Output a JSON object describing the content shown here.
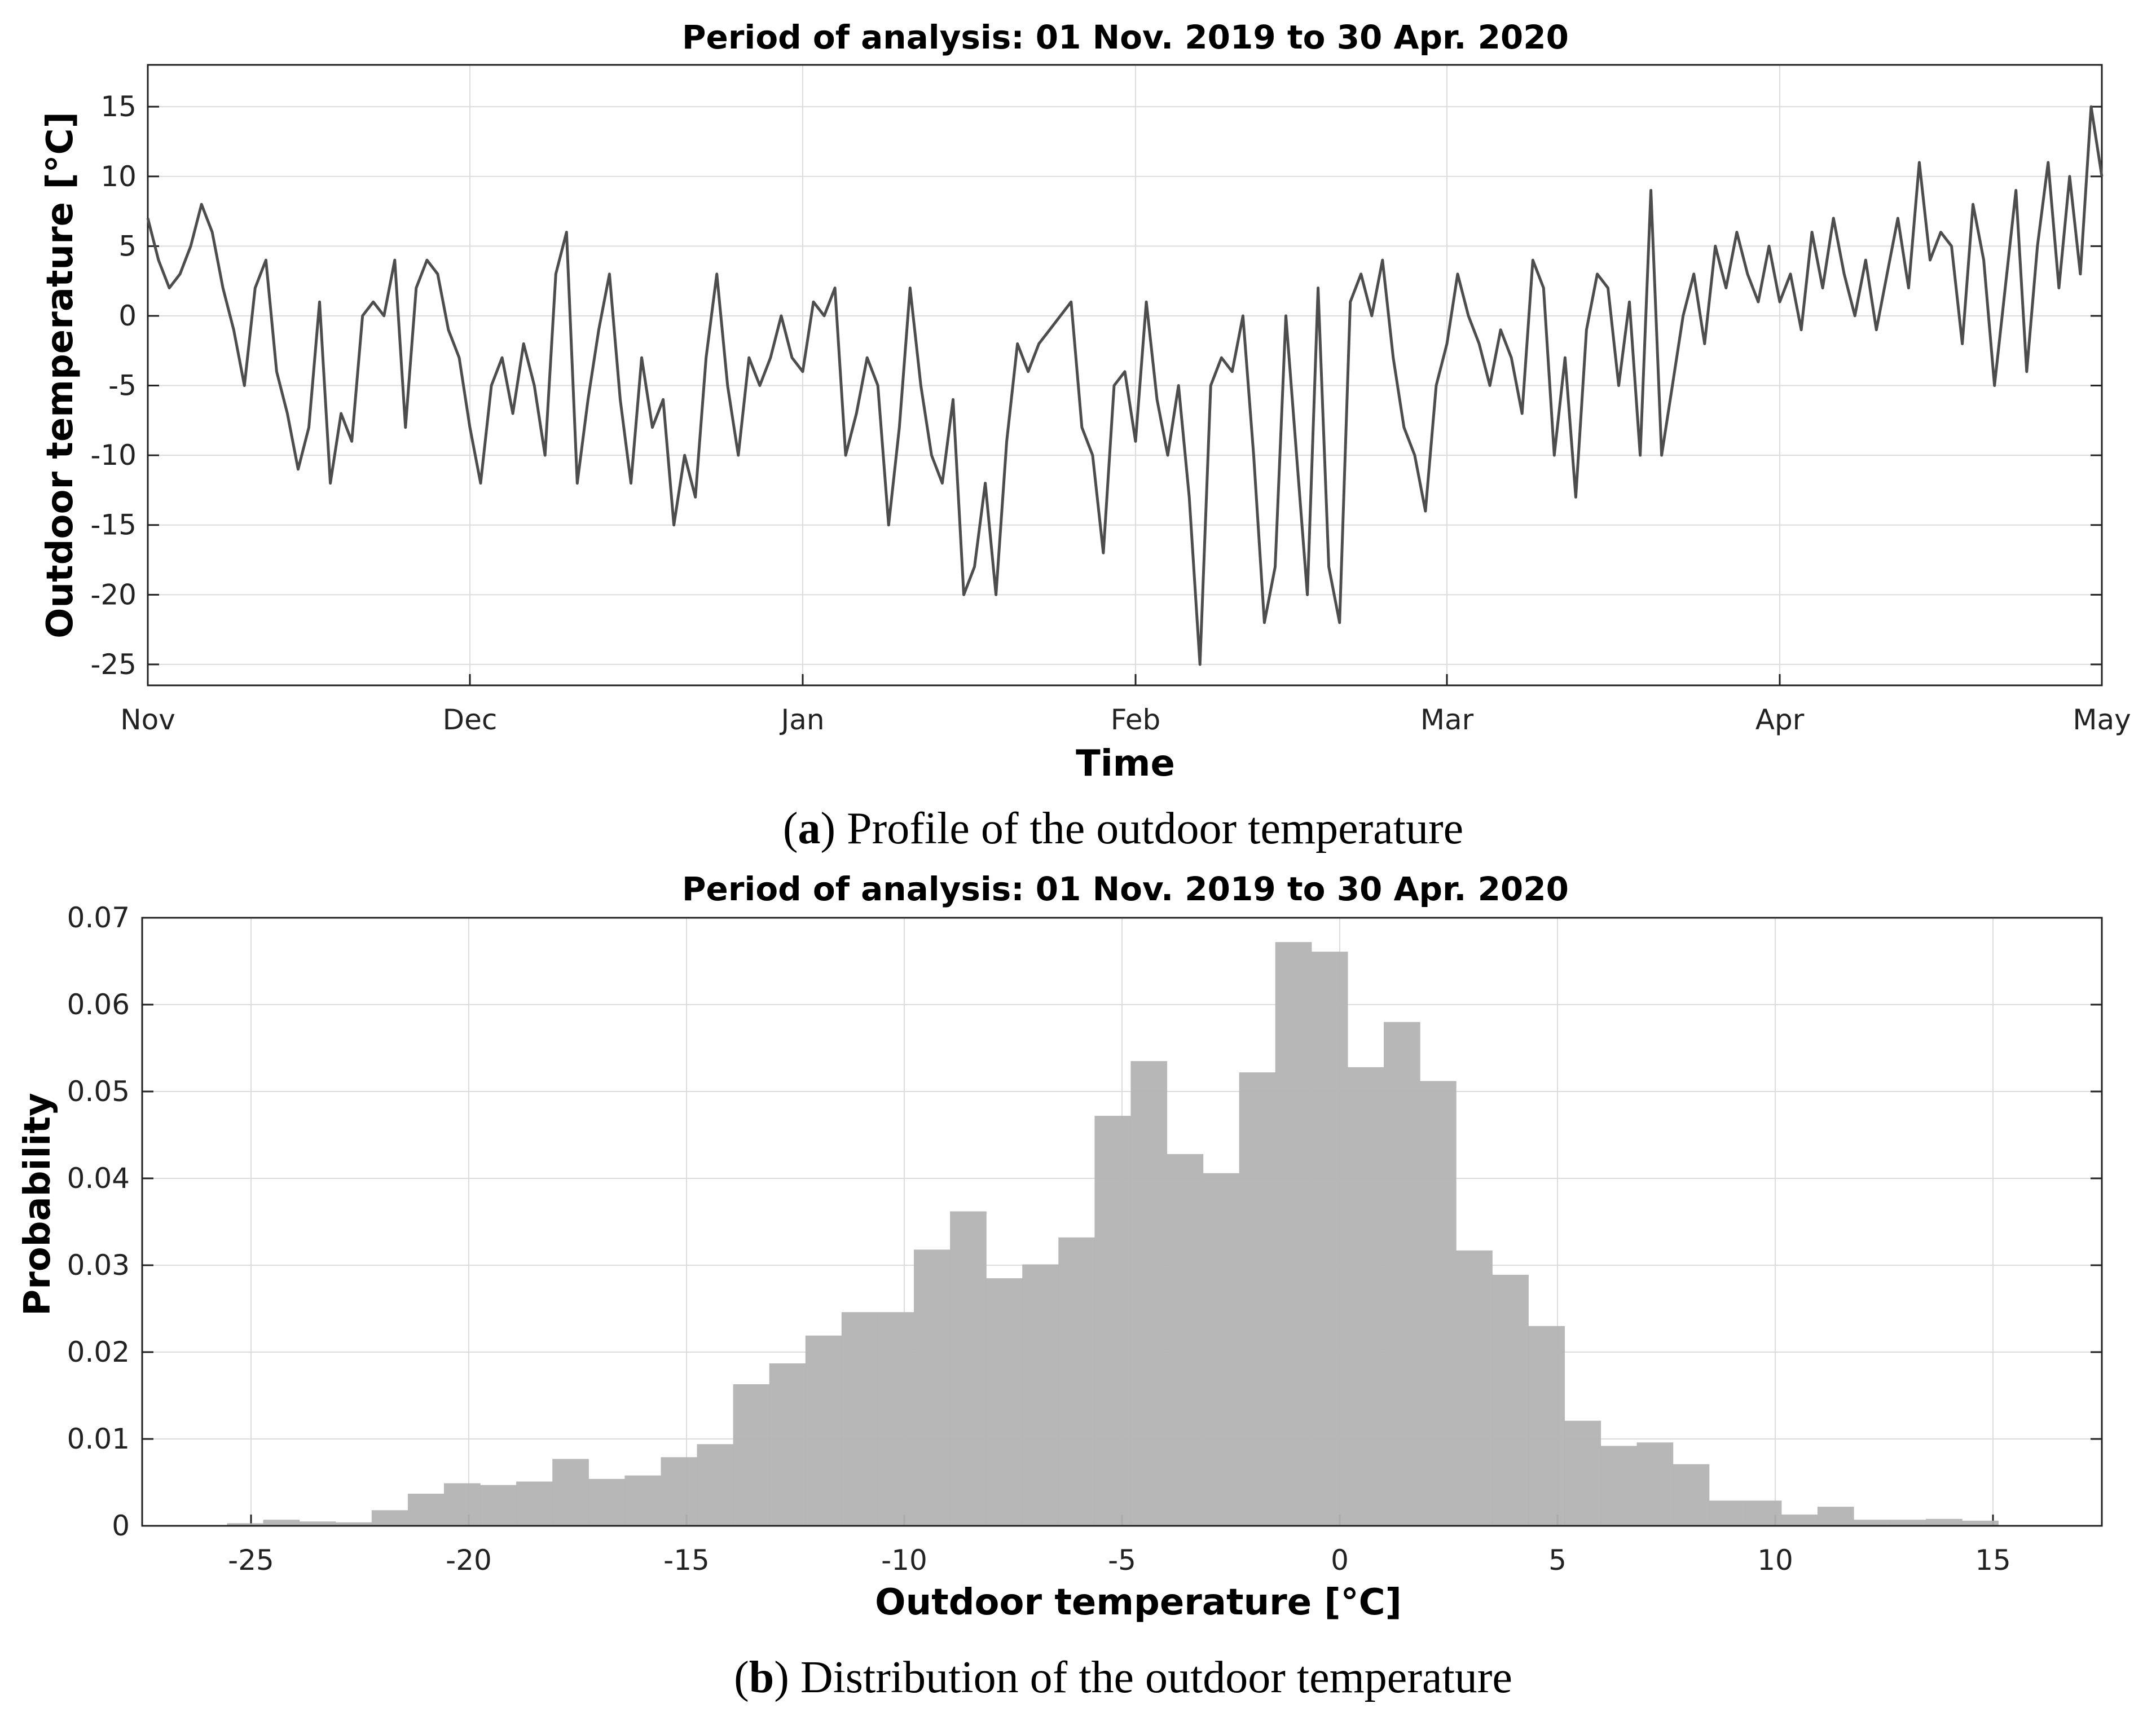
{
  "chart_data": [
    {
      "type": "line",
      "title": "Period of analysis: 01 Nov. 2019 to 30 Apr. 2020",
      "xlabel": "Time",
      "ylabel": "Outdoor temperature [°C]",
      "caption": {
        "label": "a",
        "text": ") Profile of the outdoor temperature",
        "open": "("
      },
      "xlim": [
        "2019-11-01",
        "2020-05-01"
      ],
      "ylim": [
        -26.5,
        18
      ],
      "x_ticks": [
        {
          "date": "2019-11-01",
          "label": "Nov"
        },
        {
          "date": "2019-12-01",
          "label": "Dec"
        },
        {
          "date": "2020-01-01",
          "label": "Jan"
        },
        {
          "date": "2020-02-01",
          "label": "Feb"
        },
        {
          "date": "2020-03-01",
          "label": "Mar"
        },
        {
          "date": "2020-04-01",
          "label": "Apr"
        },
        {
          "date": "2020-05-01",
          "label": "May"
        }
      ],
      "y_ticks": [
        15,
        10,
        5,
        0,
        -5,
        -10,
        -15,
        -20,
        -25
      ],
      "grid": true,
      "color": "#4d4d4d",
      "series": [
        {
          "points": [
            [
              "2019-11-01",
              7
            ],
            [
              "2019-11-02",
              4
            ],
            [
              "2019-11-03",
              2
            ],
            [
              "2019-11-04",
              3
            ],
            [
              "2019-11-05",
              5
            ],
            [
              "2019-11-06",
              8
            ],
            [
              "2019-11-07",
              6
            ],
            [
              "2019-11-08",
              2
            ],
            [
              "2019-11-09",
              -1
            ],
            [
              "2019-11-10",
              -5
            ],
            [
              "2019-11-11",
              2
            ],
            [
              "2019-11-12",
              4
            ],
            [
              "2019-11-13",
              -4
            ],
            [
              "2019-11-14",
              -7
            ],
            [
              "2019-11-15",
              -11
            ],
            [
              "2019-11-16",
              -8
            ],
            [
              "2019-11-17",
              1
            ],
            [
              "2019-11-18",
              -12
            ],
            [
              "2019-11-19",
              -7
            ],
            [
              "2019-11-20",
              -9
            ],
            [
              "2019-11-21",
              0
            ],
            [
              "2019-11-22",
              1
            ],
            [
              "2019-11-23",
              0
            ],
            [
              "2019-11-24",
              4
            ],
            [
              "2019-11-25",
              -8
            ],
            [
              "2019-11-26",
              2
            ],
            [
              "2019-11-27",
              4
            ],
            [
              "2019-11-28",
              3
            ],
            [
              "2019-11-29",
              -1
            ],
            [
              "2019-11-30",
              -3
            ],
            [
              "2019-12-01",
              -8
            ],
            [
              "2019-12-02",
              -12
            ],
            [
              "2019-12-03",
              -5
            ],
            [
              "2019-12-04",
              -3
            ],
            [
              "2019-12-05",
              -7
            ],
            [
              "2019-12-06",
              -2
            ],
            [
              "2019-12-07",
              -5
            ],
            [
              "2019-12-08",
              -10
            ],
            [
              "2019-12-09",
              3
            ],
            [
              "2019-12-10",
              6
            ],
            [
              "2019-12-11",
              -12
            ],
            [
              "2019-12-12",
              -6
            ],
            [
              "2019-12-13",
              -1
            ],
            [
              "2019-12-14",
              3
            ],
            [
              "2019-12-15",
              -6
            ],
            [
              "2019-12-16",
              -12
            ],
            [
              "2019-12-17",
              -3
            ],
            [
              "2019-12-18",
              -8
            ],
            [
              "2019-12-19",
              -6
            ],
            [
              "2019-12-20",
              -15
            ],
            [
              "2019-12-21",
              -10
            ],
            [
              "2019-12-22",
              -13
            ],
            [
              "2019-12-23",
              -3
            ],
            [
              "2019-12-24",
              3
            ],
            [
              "2019-12-25",
              -5
            ],
            [
              "2019-12-26",
              -10
            ],
            [
              "2019-12-27",
              -3
            ],
            [
              "2019-12-28",
              -5
            ],
            [
              "2019-12-29",
              -3
            ],
            [
              "2019-12-30",
              0
            ],
            [
              "2019-12-31",
              -3
            ],
            [
              "2020-01-01",
              -4
            ],
            [
              "2020-01-02",
              1
            ],
            [
              "2020-01-03",
              0
            ],
            [
              "2020-01-04",
              2
            ],
            [
              "2020-01-05",
              -10
            ],
            [
              "2020-01-06",
              -7
            ],
            [
              "2020-01-07",
              -3
            ],
            [
              "2020-01-08",
              -5
            ],
            [
              "2020-01-09",
              -15
            ],
            [
              "2020-01-10",
              -8
            ],
            [
              "2020-01-11",
              2
            ],
            [
              "2020-01-12",
              -5
            ],
            [
              "2020-01-13",
              -10
            ],
            [
              "2020-01-14",
              -12
            ],
            [
              "2020-01-15",
              -6
            ],
            [
              "2020-01-16",
              -20
            ],
            [
              "2020-01-17",
              -18
            ],
            [
              "2020-01-18",
              -12
            ],
            [
              "2020-01-19",
              -20
            ],
            [
              "2020-01-20",
              -9
            ],
            [
              "2020-01-21",
              -2
            ],
            [
              "2020-01-22",
              -4
            ],
            [
              "2020-01-23",
              -2
            ],
            [
              "2020-01-24",
              -1
            ],
            [
              "2020-01-25",
              0
            ],
            [
              "2020-01-26",
              1
            ],
            [
              "2020-01-27",
              -8
            ],
            [
              "2020-01-28",
              -10
            ],
            [
              "2020-01-29",
              -17
            ],
            [
              "2020-01-30",
              -5
            ],
            [
              "2020-01-31",
              -4
            ],
            [
              "2020-02-01",
              -9
            ],
            [
              "2020-02-02",
              1
            ],
            [
              "2020-02-03",
              -6
            ],
            [
              "2020-02-04",
              -10
            ],
            [
              "2020-02-05",
              -5
            ],
            [
              "2020-02-06",
              -13
            ],
            [
              "2020-02-07",
              -25
            ],
            [
              "2020-02-08",
              -5
            ],
            [
              "2020-02-09",
              -3
            ],
            [
              "2020-02-10",
              -4
            ],
            [
              "2020-02-11",
              0
            ],
            [
              "2020-02-12",
              -10
            ],
            [
              "2020-02-13",
              -22
            ],
            [
              "2020-02-14",
              -18
            ],
            [
              "2020-02-15",
              0
            ],
            [
              "2020-02-16",
              -10
            ],
            [
              "2020-02-17",
              -20
            ],
            [
              "2020-02-18",
              2
            ],
            [
              "2020-02-19",
              -18
            ],
            [
              "2020-02-20",
              -22
            ],
            [
              "2020-02-21",
              1
            ],
            [
              "2020-02-22",
              3
            ],
            [
              "2020-02-23",
              0
            ],
            [
              "2020-02-24",
              4
            ],
            [
              "2020-02-25",
              -3
            ],
            [
              "2020-02-26",
              -8
            ],
            [
              "2020-02-27",
              -10
            ],
            [
              "2020-02-28",
              -14
            ],
            [
              "2020-02-29",
              -5
            ],
            [
              "2020-03-01",
              -2
            ],
            [
              "2020-03-02",
              3
            ],
            [
              "2020-03-03",
              0
            ],
            [
              "2020-03-04",
              -2
            ],
            [
              "2020-03-05",
              -5
            ],
            [
              "2020-03-06",
              -1
            ],
            [
              "2020-03-07",
              -3
            ],
            [
              "2020-03-08",
              -7
            ],
            [
              "2020-03-09",
              4
            ],
            [
              "2020-03-10",
              2
            ],
            [
              "2020-03-11",
              -10
            ],
            [
              "2020-03-12",
              -3
            ],
            [
              "2020-03-13",
              -13
            ],
            [
              "2020-03-14",
              -1
            ],
            [
              "2020-03-15",
              3
            ],
            [
              "2020-03-16",
              2
            ],
            [
              "2020-03-17",
              -5
            ],
            [
              "2020-03-18",
              1
            ],
            [
              "2020-03-19",
              -10
            ],
            [
              "2020-03-20",
              9
            ],
            [
              "2020-03-21",
              -10
            ],
            [
              "2020-03-22",
              -5
            ],
            [
              "2020-03-23",
              0
            ],
            [
              "2020-03-24",
              3
            ],
            [
              "2020-03-25",
              -2
            ],
            [
              "2020-03-26",
              5
            ],
            [
              "2020-03-27",
              2
            ],
            [
              "2020-03-28",
              6
            ],
            [
              "2020-03-29",
              3
            ],
            [
              "2020-03-30",
              1
            ],
            [
              "2020-03-31",
              5
            ],
            [
              "2020-04-01",
              1
            ],
            [
              "2020-04-02",
              3
            ],
            [
              "2020-04-03",
              -1
            ],
            [
              "2020-04-04",
              6
            ],
            [
              "2020-04-05",
              2
            ],
            [
              "2020-04-06",
              7
            ],
            [
              "2020-04-07",
              3
            ],
            [
              "2020-04-08",
              0
            ],
            [
              "2020-04-09",
              4
            ],
            [
              "2020-04-10",
              -1
            ],
            [
              "2020-04-11",
              3
            ],
            [
              "2020-04-12",
              7
            ],
            [
              "2020-04-13",
              2
            ],
            [
              "2020-04-14",
              11
            ],
            [
              "2020-04-15",
              4
            ],
            [
              "2020-04-16",
              6
            ],
            [
              "2020-04-17",
              5
            ],
            [
              "2020-04-18",
              -2
            ],
            [
              "2020-04-19",
              8
            ],
            [
              "2020-04-20",
              4
            ],
            [
              "2020-04-21",
              -5
            ],
            [
              "2020-04-22",
              2
            ],
            [
              "2020-04-23",
              9
            ],
            [
              "2020-04-24",
              -4
            ],
            [
              "2020-04-25",
              5
            ],
            [
              "2020-04-26",
              11
            ],
            [
              "2020-04-27",
              2
            ],
            [
              "2020-04-28",
              10
            ],
            [
              "2020-04-29",
              3
            ],
            [
              "2020-04-30",
              15
            ],
            [
              "2020-05-01",
              10
            ]
          ]
        }
      ]
    },
    {
      "type": "bar",
      "title": "Period of analysis: 01 Nov. 2019 to 30 Apr. 2020",
      "xlabel": "Outdoor temperature [°C]",
      "ylabel": "Probability",
      "caption": {
        "label": "b",
        "text": ") Distribution of the outdoor temperature",
        "open": "("
      },
      "xlim": [
        -27.5,
        17.5
      ],
      "ylim": [
        0,
        0.07
      ],
      "x_ticks": [
        -25,
        -20,
        -15,
        -10,
        -5,
        0,
        5,
        10,
        15
      ],
      "y_ticks": [
        0,
        0.01,
        0.02,
        0.03,
        0.04,
        0.05,
        0.06,
        0.07
      ],
      "grid": true,
      "color": "#b3b3b3",
      "bin_width": 0.83,
      "bin_edges_start": -25.55,
      "values": [
        0.0003,
        0.0007,
        0.0005,
        0.0004,
        0.0018,
        0.0037,
        0.0049,
        0.0047,
        0.0051,
        0.0077,
        0.0054,
        0.0058,
        0.0079,
        0.0094,
        0.0163,
        0.0187,
        0.0219,
        0.0246,
        0.0246,
        0.0318,
        0.0362,
        0.0285,
        0.0301,
        0.0332,
        0.0472,
        0.0535,
        0.0428,
        0.0406,
        0.0522,
        0.0672,
        0.0661,
        0.0528,
        0.058,
        0.0512,
        0.0317,
        0.0289,
        0.023,
        0.0121,
        0.0092,
        0.0096,
        0.0071,
        0.0029,
        0.0029,
        0.0013,
        0.0022,
        0.0007,
        0.0007,
        0.0008,
        0.0006
      ]
    }
  ]
}
